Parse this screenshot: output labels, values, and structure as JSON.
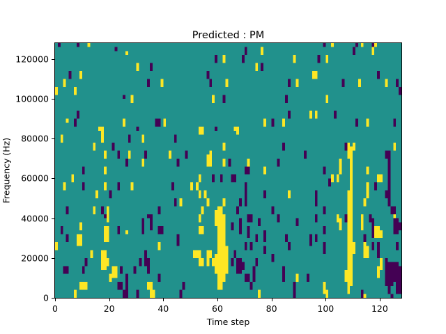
{
  "figure": {
    "title": "Predicted : PM",
    "xlabel": "Time step",
    "ylabel": "Frequency (Hz)"
  },
  "chart_data": {
    "type": "heatmap",
    "title": "Predicted : PM",
    "xlabel": "Time step",
    "ylabel": "Frequency (Hz)",
    "grid": {
      "cols": 128,
      "rows": 64
    },
    "x_range": [
      0,
      128
    ],
    "y_range": [
      0,
      128000
    ],
    "x_ticks": [
      "0",
      "20",
      "40",
      "60",
      "80",
      "100",
      "120"
    ],
    "x_tick_values": [
      0,
      20,
      40,
      60,
      80,
      100,
      120
    ],
    "y_ticks": [
      "0",
      "20000",
      "40000",
      "60000",
      "80000",
      "100000",
      "120000"
    ],
    "y_tick_values": [
      0,
      20000,
      40000,
      60000,
      80000,
      100000,
      120000
    ],
    "hz_per_row": 2000,
    "legend": "none",
    "grid_lines": false,
    "colors": {
      "mid_background": "#21918c",
      "high": "#fde725",
      "low": "#440154",
      "frame": "#000000"
    },
    "yellow_runs": {
      "0": [
        [
          51,
          52
        ],
        [
          12,
          13
        ]
      ],
      "2": [
        [
          39,
          40
        ]
      ],
      "3": [
        [
          53,
          54
        ],
        [
          27,
          28
        ]
      ],
      "4": [
        [
          44,
          44
        ]
      ],
      "6": [
        [
          29,
          30
        ]
      ],
      "7": [
        [
          51,
          52
        ],
        [
          0,
          1
        ]
      ],
      "8": [
        [
          13,
          15
        ]
      ],
      "9": [
        [
          55,
          56
        ],
        [
          17,
          18
        ],
        [
          13,
          15
        ],
        [
          2,
          3
        ]
      ],
      "10": [
        [
          2,
          3
        ]
      ],
      "11": [
        [
          2,
          3
        ]
      ],
      "12": [
        [
          63,
          63
        ]
      ],
      "13": [
        [
          10,
          11
        ]
      ],
      "14": [
        [
          37,
          38
        ],
        [
          21,
          22
        ]
      ],
      "15": [
        [
          25,
          26
        ]
      ],
      "16": [
        [
          42,
          42
        ]
      ],
      "17": [
        [
          41,
          42
        ],
        [
          39,
          40
        ],
        [
          7,
          11
        ]
      ],
      "18": [
        [
          35,
          36
        ],
        [
          31,
          32
        ],
        [
          27,
          28
        ],
        [
          14,
          17
        ],
        [
          7,
          11
        ]
      ],
      "19": [
        [
          21,
          22
        ],
        [
          19,
          20
        ],
        [
          14,
          17
        ],
        [
          8,
          9
        ]
      ],
      "20": [
        [
          4,
          5
        ]
      ],
      "21": [
        [
          5,
          7
        ]
      ],
      "22": [
        [
          5,
          7
        ]
      ],
      "25": [
        [
          43,
          44
        ]
      ],
      "26": [
        [
          61,
          61
        ],
        [
          16,
          16
        ]
      ],
      "27": [
        [
          35,
          36
        ]
      ],
      "28": [
        [
          49,
          50
        ],
        [
          27,
          28
        ]
      ],
      "30": [
        [
          57,
          58
        ]
      ],
      "32": [
        [
          39,
          40
        ],
        [
          33,
          34
        ]
      ],
      "34": [
        [
          2,
          3
        ]
      ],
      "35": [
        [
          2,
          3
        ],
        [
          0,
          1
        ]
      ],
      "36": [
        [
          0,
          1
        ]
      ],
      "38": [
        [
          12,
          13
        ]
      ],
      "39": [
        [
          53,
          54
        ]
      ],
      "40": [
        [
          43,
          44
        ]
      ],
      "42": [
        [
          35,
          36
        ]
      ],
      "46": [
        [
          23,
          24
        ]
      ],
      "50": [
        [
          27,
          28
        ]
      ],
      "51": [
        [
          10,
          11
        ]
      ],
      "52": [
        [
          27,
          28
        ],
        [
          10,
          11
        ]
      ],
      "53": [
        [
          41,
          42
        ],
        [
          29,
          30
        ],
        [
          25,
          26
        ],
        [
          19,
          20
        ],
        [
          16,
          17
        ],
        [
          8,
          11
        ]
      ],
      "54": [
        [
          41,
          42
        ],
        [
          21,
          22
        ],
        [
          16,
          17
        ],
        [
          8,
          9
        ]
      ],
      "55": [
        [
          25,
          26
        ]
      ],
      "56": [
        [
          33,
          35
        ],
        [
          23,
          24
        ],
        [
          8,
          11
        ]
      ],
      "57": [
        [
          33,
          36
        ],
        [
          10,
          11
        ]
      ],
      "58": [
        [
          49,
          50
        ],
        [
          8,
          9
        ]
      ],
      "59": [
        [
          18,
          21
        ],
        [
          6,
          10
        ]
      ],
      "60": [
        [
          2,
          22
        ]
      ],
      "61": [
        [
          2,
          22
        ]
      ],
      "62": [
        [
          59,
          60
        ],
        [
          37,
          38
        ],
        [
          33,
          34
        ],
        [
          23,
          24
        ],
        [
          4,
          20
        ]
      ],
      "63": [
        [
          53,
          54
        ],
        [
          6,
          12
        ]
      ],
      "66": [
        [
          42,
          42
        ]
      ],
      "67": [
        [
          41,
          42
        ]
      ],
      "71": [
        [
          33,
          34
        ]
      ],
      "74": [
        [
          57,
          58
        ]
      ],
      "75": [
        [
          0,
          1
        ]
      ],
      "76": [
        [
          61,
          62
        ]
      ],
      "77": [
        [
          43,
          44
        ],
        [
          31,
          32
        ]
      ],
      "84": [
        [
          43,
          44
        ]
      ],
      "86": [
        [
          25,
          26
        ]
      ],
      "88": [
        [
          59,
          60
        ]
      ],
      "89": [
        [
          53,
          54
        ],
        [
          4,
          5
        ]
      ],
      "94": [
        [
          45,
          46
        ]
      ],
      "95": [
        [
          55,
          56
        ]
      ],
      "96": [
        [
          55,
          56
        ],
        [
          45,
          46
        ]
      ],
      "99": [
        [
          1,
          3
        ]
      ],
      "100": [
        [
          59,
          60
        ],
        [
          49,
          50
        ],
        [
          0,
          1
        ]
      ],
      "102": [
        [
          63,
          63
        ],
        [
          29,
          30
        ]
      ],
      "104": [
        [
          29,
          30
        ],
        [
          19,
          20
        ]
      ],
      "105": [
        [
          31,
          34
        ],
        [
          17,
          19
        ]
      ],
      "107": [
        [
          4,
          6
        ]
      ],
      "108": [
        [
          35,
          38
        ],
        [
          1,
          26
        ]
      ],
      "109": [
        [
          3,
          37
        ]
      ],
      "110": [
        [
          37,
          38
        ],
        [
          11,
          13
        ]
      ],
      "112": [
        [
          53,
          54
        ]
      ],
      "113": [
        [
          63,
          63
        ],
        [
          17,
          20
        ]
      ],
      "114": [
        [
          23,
          24
        ],
        [
          10,
          13
        ],
        [
          0,
          0
        ]
      ],
      "115": [
        [
          43,
          44
        ],
        [
          31,
          32
        ],
        [
          25,
          28
        ],
        [
          10,
          12
        ]
      ],
      "117": [
        [
          61,
          62
        ]
      ],
      "118": [
        [
          63,
          63
        ],
        [
          15,
          17
        ]
      ],
      "119": [
        [
          29,
          30
        ],
        [
          15,
          17
        ],
        [
          5,
          7
        ]
      ],
      "120": [
        [
          29,
          30
        ],
        [
          15,
          16
        ],
        [
          7,
          9
        ]
      ],
      "122": [
        [
          53,
          54
        ]
      ],
      "125": [
        [
          37,
          38
        ],
        [
          19,
          20
        ]
      ]
    },
    "dark_runs": {
      "1": [
        [
          63,
          63
        ]
      ],
      "2": [
        [
          16,
          17
        ]
      ],
      "3": [
        [
          6,
          7
        ]
      ],
      "4": [
        [
          21,
          22
        ],
        [
          14,
          15
        ],
        [
          6,
          7
        ]
      ],
      "5": [
        [
          55,
          56
        ]
      ],
      "7": [
        [
          43,
          44
        ]
      ],
      "8": [
        [
          63,
          63
        ],
        [
          45,
          46
        ]
      ],
      "10": [
        [
          31,
          32
        ],
        [
          27,
          28
        ],
        [
          6,
          7
        ]
      ],
      "11": [
        [
          8,
          9
        ]
      ],
      "17": [
        [
          21,
          22
        ]
      ],
      "18": [
        [
          20,
          20
        ]
      ],
      "20": [
        [
          25,
          26
        ]
      ],
      "21": [
        [
          37,
          38
        ]
      ],
      "22": [
        [
          62,
          62
        ]
      ],
      "23": [
        [
          35,
          36
        ],
        [
          27,
          28
        ],
        [
          16,
          17
        ],
        [
          2,
          3
        ]
      ],
      "24": [
        [
          6,
          7
        ],
        [
          2,
          3
        ]
      ],
      "25": [
        [
          50,
          50
        ],
        [
          0,
          1
        ]
      ],
      "26": [
        [
          33,
          34
        ],
        [
          2,
          5
        ],
        [
          0,
          1
        ]
      ],
      "27": [
        [
          39,
          40
        ]
      ],
      "29": [
        [
          6,
          7
        ]
      ],
      "30": [
        [
          42,
          42
        ],
        [
          0,
          1
        ]
      ],
      "31": [
        [
          8,
          9
        ]
      ],
      "32": [
        [
          16,
          19
        ]
      ],
      "33": [
        [
          35,
          36
        ],
        [
          8,
          11
        ]
      ],
      "34": [
        [
          53,
          54
        ],
        [
          20,
          20
        ],
        [
          6,
          9
        ]
      ],
      "35": [
        [
          57,
          58
        ],
        [
          17,
          20
        ]
      ],
      "37": [
        [
          43,
          44
        ]
      ],
      "38": [
        [
          43,
          44
        ],
        [
          21,
          22
        ],
        [
          16,
          17
        ],
        [
          4,
          5
        ]
      ],
      "39": [
        [
          16,
          17
        ]
      ],
      "43": [
        [
          27,
          28
        ]
      ],
      "44": [
        [
          39,
          40
        ],
        [
          23,
          24
        ]
      ],
      "45": [
        [
          33,
          34
        ],
        [
          13,
          15
        ]
      ],
      "46": [
        [
          0,
          1
        ]
      ],
      "47": [
        [
          2,
          3
        ]
      ],
      "48": [
        [
          35,
          36
        ]
      ],
      "56": [
        [
          55,
          56
        ]
      ],
      "57": [
        [
          53,
          54
        ]
      ],
      "58": [
        [
          29,
          30
        ]
      ],
      "59": [
        [
          59,
          60
        ],
        [
          42,
          42
        ]
      ],
      "61": [
        [
          29,
          30
        ]
      ],
      "62": [
        [
          49,
          50
        ]
      ],
      "64": [
        [
          33,
          34
        ]
      ],
      "65": [
        [
          29,
          30
        ],
        [
          17,
          18
        ],
        [
          8,
          9
        ]
      ],
      "66": [
        [
          29,
          30
        ],
        [
          10,
          11
        ]
      ],
      "67": [
        [
          21,
          22
        ],
        [
          6,
          9
        ]
      ],
      "68": [
        [
          23,
          24
        ],
        [
          16,
          19
        ],
        [
          6,
          9
        ]
      ],
      "69": [
        [
          59,
          60
        ],
        [
          7,
          8
        ]
      ],
      "70": [
        [
          61,
          62
        ],
        [
          31,
          32
        ],
        [
          27,
          28
        ],
        [
          25,
          26
        ],
        [
          23,
          24
        ],
        [
          12,
          13
        ],
        [
          4,
          5
        ]
      ],
      "71": [
        [
          31,
          32
        ],
        [
          19,
          20
        ],
        [
          15,
          17
        ],
        [
          4,
          5
        ]
      ],
      "72": [
        [
          19,
          20
        ],
        [
          12,
          13
        ],
        [
          2,
          3
        ]
      ],
      "73": [
        [
          4,
          7
        ]
      ],
      "74": [
        [
          14,
          15
        ],
        [
          8,
          9
        ]
      ],
      "75": [
        [
          18,
          19
        ]
      ],
      "76": [
        [
          57,
          58
        ]
      ],
      "77": [
        [
          25,
          26
        ],
        [
          14,
          16
        ],
        [
          11,
          12
        ]
      ],
      "80": [
        [
          43,
          44
        ],
        [
          21,
          22
        ],
        [
          9,
          10
        ]
      ],
      "82": [
        [
          33,
          34
        ],
        [
          19,
          20
        ]
      ],
      "84": [
        [
          37,
          38
        ],
        [
          4,
          7
        ]
      ],
      "85": [
        [
          49,
          50
        ],
        [
          14,
          15
        ]
      ],
      "86": [
        [
          53,
          54
        ],
        [
          45,
          46
        ],
        [
          12,
          13
        ]
      ],
      "88": [
        [
          0,
          3
        ]
      ],
      "89": [
        [
          18,
          19
        ]
      ],
      "92": [
        [
          35,
          36
        ]
      ],
      "93": [
        [
          4,
          5
        ]
      ],
      "94": [
        [
          13,
          15
        ]
      ],
      "96": [
        [
          23,
          26
        ],
        [
          19,
          20
        ],
        [
          14,
          15
        ]
      ],
      "97": [
        [
          59,
          60
        ]
      ],
      "99": [
        [
          63,
          63
        ],
        [
          31,
          32
        ],
        [
          21,
          22
        ],
        [
          16,
          17
        ],
        [
          11,
          13
        ]
      ],
      "101": [
        [
          28,
          29
        ]
      ],
      "103": [
        [
          45,
          46
        ]
      ],
      "106": [
        [
          53,
          54
        ]
      ],
      "107": [
        [
          37,
          38
        ],
        [
          19,
          20
        ]
      ],
      "110": [
        [
          61,
          62
        ]
      ],
      "111": [
        [
          63,
          63
        ],
        [
          43,
          44
        ]
      ],
      "113": [
        [
          0,
          1
        ]
      ],
      "114": [
        [
          14,
          15
        ]
      ],
      "116": [
        [
          19,
          20
        ]
      ],
      "117": [
        [
          63,
          63
        ],
        [
          15,
          19
        ],
        [
          12,
          13
        ]
      ],
      "118": [
        [
          27,
          28
        ]
      ],
      "119": [
        [
          55,
          56
        ],
        [
          12,
          13
        ],
        [
          10,
          11
        ]
      ],
      "122": [
        [
          35,
          36
        ],
        [
          25,
          26
        ],
        [
          3,
          9
        ]
      ],
      "123": [
        [
          23,
          36
        ],
        [
          1,
          8
        ]
      ],
      "124": [
        [
          21,
          22
        ],
        [
          3,
          8
        ],
        [
          0,
          0
        ]
      ],
      "125": [
        [
          43,
          44
        ],
        [
          21,
          22
        ],
        [
          16,
          19
        ],
        [
          4,
          8
        ]
      ],
      "126": [
        [
          53,
          54
        ],
        [
          16,
          19
        ],
        [
          12,
          13
        ],
        [
          1,
          8
        ]
      ],
      "127": [
        [
          51,
          52
        ],
        [
          17,
          18
        ],
        [
          1,
          7
        ]
      ]
    }
  }
}
